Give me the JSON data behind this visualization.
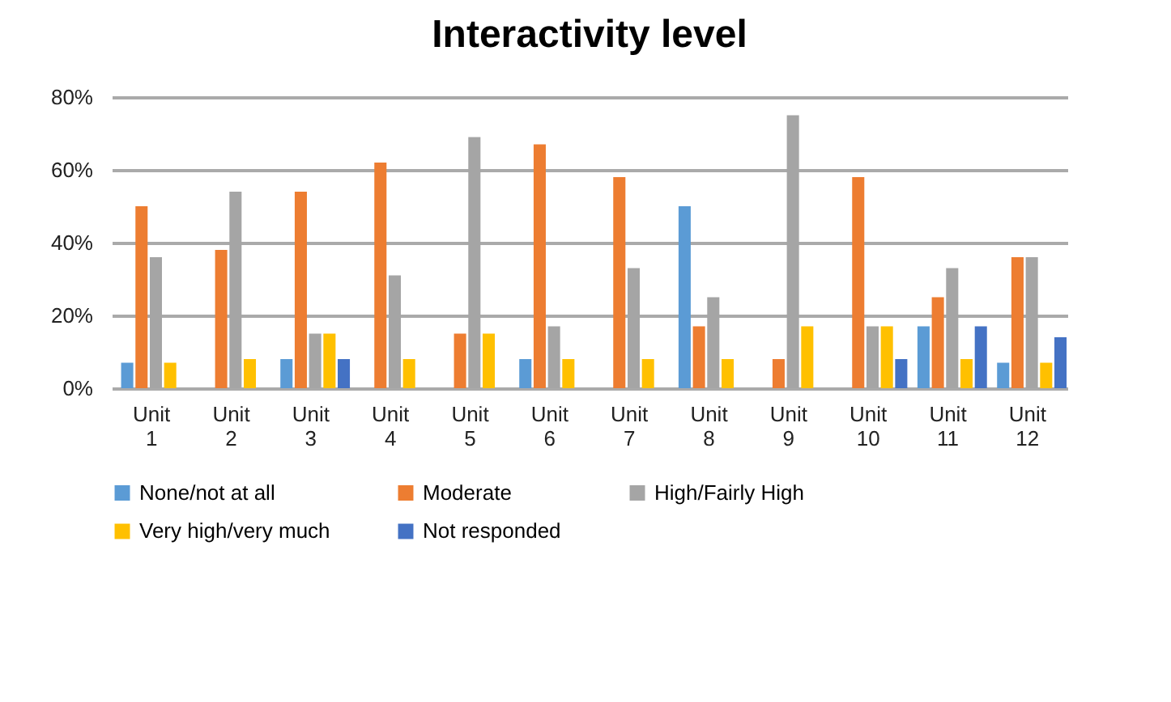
{
  "chart_data": {
    "type": "bar",
    "title": "Interactivity level",
    "categories": [
      "Unit 1",
      "Unit 2",
      "Unit 3",
      "Unit 4",
      "Unit 5",
      "Unit 6",
      "Unit 7",
      "Unit 8",
      "Unit 9",
      "Unit 10",
      "Unit 11",
      "Unit 12"
    ],
    "series": [
      {
        "name": "None/not at all",
        "color": "#5b9bd5",
        "values": [
          7,
          0,
          8,
          0,
          0,
          8,
          0,
          50,
          0,
          0,
          17,
          7
        ]
      },
      {
        "name": "Moderate",
        "color": "#ed7d31",
        "values": [
          50,
          38,
          54,
          62,
          15,
          67,
          58,
          17,
          8,
          58,
          25,
          36
        ]
      },
      {
        "name": "High/Fairly High",
        "color": "#a5a5a5",
        "values": [
          36,
          54,
          15,
          31,
          69,
          17,
          33,
          25,
          75,
          17,
          33,
          36
        ]
      },
      {
        "name": "Very high/very much",
        "color": "#ffc000",
        "values": [
          7,
          8,
          15,
          8,
          15,
          8,
          8,
          8,
          17,
          17,
          8,
          7
        ]
      },
      {
        "name": "Not responded",
        "color": "#4472c4",
        "values": [
          0,
          0,
          8,
          0,
          0,
          0,
          0,
          0,
          0,
          8,
          17,
          14
        ]
      }
    ],
    "ylim": [
      0,
      80
    ],
    "yticks": [
      {
        "value": 0,
        "label": "0%"
      },
      {
        "value": 20,
        "label": "20%"
      },
      {
        "value": 40,
        "label": "40%"
      },
      {
        "value": 60,
        "label": "60%"
      },
      {
        "value": 80,
        "label": "80%"
      }
    ],
    "grid": "y",
    "legend": "bottom"
  }
}
